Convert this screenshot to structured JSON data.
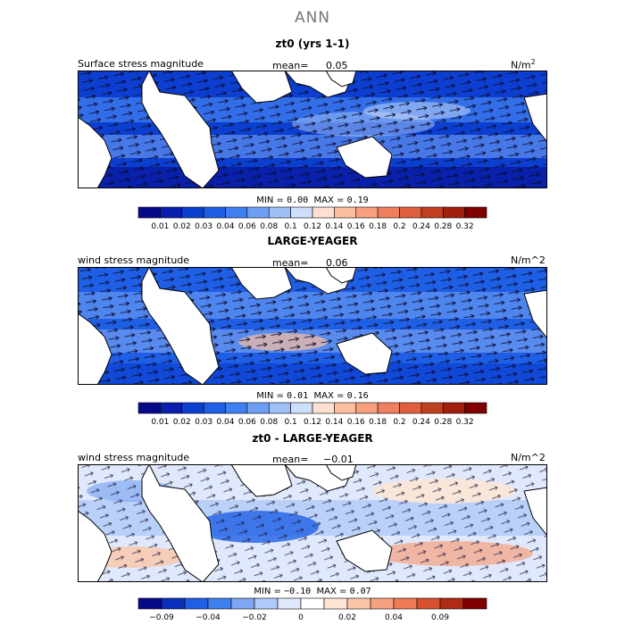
{
  "main_title": "ANN",
  "colors": {
    "ocean_low": "#0a3fc9",
    "ocean_mid": "#2f6de0",
    "land": "#ffffff",
    "positive": "#e88a6b"
  },
  "chart_data": [
    {
      "type": "heatmap",
      "title": "zt0 (yrs 1-1)",
      "field_label": "Surface stress magnitude",
      "mean_label": "mean=",
      "mean_value": "0.05",
      "units": "N/m",
      "units_sup": "2",
      "min_label": "MIN =",
      "min_value": "0.00",
      "max_label": "MAX =",
      "max_value": "0.19",
      "colorbar": {
        "colors": [
          "#08088b",
          "#0a1fb0",
          "#0c3fd0",
          "#1f5fe6",
          "#3f7ff0",
          "#6f9ff5",
          "#9fbff8",
          "#cfdffb",
          "#fde0d0",
          "#fbbfa0",
          "#f79f7f",
          "#ef7f5f",
          "#df5f3f",
          "#c03f1f",
          "#a01f0f",
          "#800000"
        ],
        "ticks": [
          "0.01",
          "0.02",
          "0.03",
          "0.04",
          "0.06",
          "0.08",
          "0.1",
          "0.12",
          "0.14",
          "0.16",
          "0.18",
          "0.2",
          "0.24",
          "0.28",
          "0.32"
        ]
      }
    },
    {
      "type": "heatmap",
      "title": "LARGE-YEAGER",
      "field_label": "wind stress magnitude",
      "mean_label": "mean=",
      "mean_value": "0.06",
      "units": "N/m^2",
      "min_label": "MIN =",
      "min_value": "0.01",
      "max_label": "MAX =",
      "max_value": "0.16",
      "colorbar": {
        "colors": [
          "#08088b",
          "#0a1fb0",
          "#0c3fd0",
          "#1f5fe6",
          "#3f7ff0",
          "#6f9ff5",
          "#9fbff8",
          "#cfdffb",
          "#fde0d0",
          "#fbbfa0",
          "#f79f7f",
          "#ef7f5f",
          "#df5f3f",
          "#c03f1f",
          "#a01f0f",
          "#800000"
        ],
        "ticks": [
          "0.01",
          "0.02",
          "0.03",
          "0.04",
          "0.06",
          "0.08",
          "0.1",
          "0.12",
          "0.14",
          "0.16",
          "0.18",
          "0.2",
          "0.24",
          "0.28",
          "0.32"
        ]
      }
    },
    {
      "type": "heatmap",
      "title": "zt0 - LARGE-YEAGER",
      "field_label": "wind stress magnitude",
      "mean_label": "mean=",
      "mean_value": "−0.01",
      "units": "N/m^2",
      "min_label": "MIN =",
      "min_value": "−0.10",
      "max_label": "MAX =",
      "max_value": "0.07",
      "colorbar": {
        "colors": [
          "#08088b",
          "#0a2fbf",
          "#1f5fe6",
          "#3f7ff0",
          "#7fa7f5",
          "#afc9f8",
          "#dfe9fb",
          "#ffffff",
          "#fde5d5",
          "#fbc5a8",
          "#f7a07f",
          "#ef7a55",
          "#d8502f",
          "#b02a15",
          "#800000"
        ],
        "ticks": [
          "−0.09",
          "−0.04",
          "−0.02",
          "0",
          "0.02",
          "0.04",
          "0.09"
        ],
        "tick_slots": [
          1,
          3,
          5,
          7,
          9,
          11,
          13
        ]
      }
    }
  ]
}
